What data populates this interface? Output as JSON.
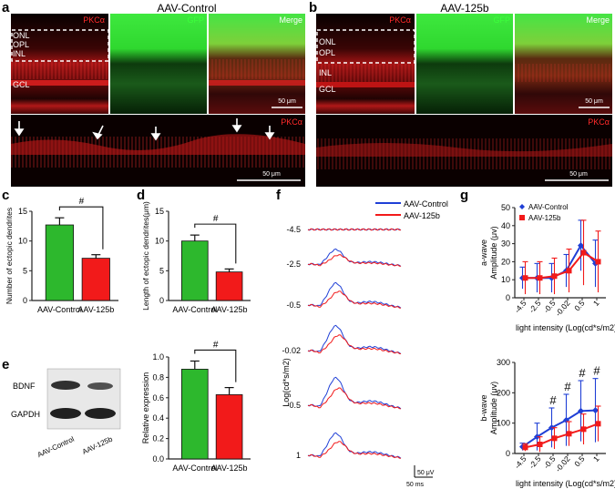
{
  "panel_letters": {
    "a": "a",
    "b": "b",
    "c": "c",
    "d": "d",
    "e": "e",
    "f": "f",
    "g": "g"
  },
  "panel_a": {
    "title": "AAV-Control",
    "channels": [
      "PKCα",
      "GFP",
      "Merge"
    ],
    "layers": [
      "ONL",
      "OPL",
      "INL",
      "GCL"
    ],
    "scale_top": "50 μm",
    "zoom_label": "PKCα",
    "scale_zoom": "50 μm"
  },
  "panel_b": {
    "title": "AAV-125b",
    "channels": [
      "PKCα",
      "GFP",
      "Merge"
    ],
    "layers": [
      "ONL",
      "OPL",
      "INL",
      "GCL"
    ],
    "scale_top": "50 μm",
    "zoom_label": "PKCα",
    "scale_zoom": "50 μm"
  },
  "panel_e_blot": {
    "rows": [
      "BDNF",
      "GAPDH"
    ],
    "columns": [
      "AAV-Control",
      "AAV-125b"
    ]
  },
  "panel_f": {
    "ylabel": "Log(cd*s/m2)",
    "legend": [
      "AAV-Control",
      "AAV-125b"
    ],
    "intensities": [
      "-4.5",
      "-2.5",
      "-0.5",
      "-0.02",
      "0.5",
      "1"
    ],
    "scale_v": "50 μV",
    "scale_t": "50 ms"
  },
  "colors": {
    "green": "#2db82d",
    "red": "#f21a1a",
    "blue": "#1f3fd6",
    "axis": "#222222"
  },
  "chart_data": [
    {
      "id": "c",
      "type": "bar",
      "categories": [
        "AAV-Control",
        "AAV-125b"
      ],
      "values": [
        12.7,
        7.1
      ],
      "errors": [
        1.2,
        0.6
      ],
      "ylabel": "Number of ectopic dendrites",
      "ylim": [
        0,
        15
      ],
      "yticks": [
        "0",
        "5",
        "10",
        "15"
      ],
      "significance": "#"
    },
    {
      "id": "d",
      "type": "bar",
      "categories": [
        "AAV-Control",
        "AAV-125b"
      ],
      "values": [
        10.0,
        4.8
      ],
      "errors": [
        1.0,
        0.5
      ],
      "ylabel": "Length of ectopic dendrites(μm)",
      "ylim": [
        0,
        15
      ],
      "yticks": [
        "0",
        "5",
        "10",
        "15"
      ],
      "significance": "#"
    },
    {
      "id": "e",
      "type": "bar",
      "categories": [
        "AAV-Control",
        "AAV-125b"
      ],
      "values": [
        0.88,
        0.63
      ],
      "errors": [
        0.08,
        0.07
      ],
      "ylabel": "Relative expression",
      "ylim": [
        0,
        1.0
      ],
      "yticks": [
        "0.0",
        "0.2",
        "0.4",
        "0.6",
        "0.8",
        "1.0"
      ],
      "significance": "#"
    },
    {
      "id": "g-a-wave",
      "type": "line",
      "categories": [
        "-4.5",
        "-2.5",
        "-0.5",
        "-0.02",
        "0.5",
        "1"
      ],
      "series": [
        {
          "name": "AAV-Control",
          "values": [
            11,
            11,
            11,
            15,
            29,
            19
          ],
          "errors": [
            6,
            8,
            8,
            9,
            14,
            13
          ]
        },
        {
          "name": "AAV-125b",
          "values": [
            11,
            11,
            12,
            15,
            25,
            20
          ],
          "errors": [
            9,
            9,
            10,
            12,
            18,
            17
          ]
        }
      ],
      "ylabel": "a-wave\nAmplitude (μv)",
      "xlabel": "light intensity (Log(cd*s/m2))",
      "ylim": [
        0,
        50
      ],
      "yticks": [
        "0",
        "10",
        "20",
        "30",
        "40",
        "50"
      ],
      "legend": [
        "AAV-Control",
        "AAV-125b"
      ]
    },
    {
      "id": "g-b-wave",
      "type": "line",
      "categories": [
        "-4.5",
        "-2.5",
        "-0.5",
        "-0.02",
        "0.5",
        "1"
      ],
      "series": [
        {
          "name": "AAV-Control",
          "values": [
            22,
            55,
            85,
            110,
            140,
            142
          ],
          "errors": [
            12,
            45,
            65,
            85,
            100,
            105
          ]
        },
        {
          "name": "AAV-125b",
          "values": [
            20,
            30,
            50,
            65,
            80,
            98
          ],
          "errors": [
            12,
            25,
            35,
            40,
            50,
            58
          ]
        }
      ],
      "ylabel": "b-wave\nAmplitude (μv)",
      "xlabel": "light intensity (Log(cd*s/m2))",
      "ylim": [
        0,
        300
      ],
      "yticks": [
        "0",
        "100",
        "200",
        "300"
      ],
      "significance_marks": [
        "#",
        "#",
        "#",
        "#"
      ]
    }
  ]
}
